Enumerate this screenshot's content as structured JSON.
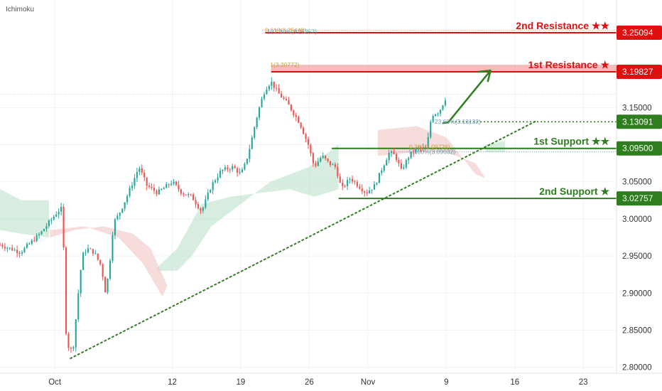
{
  "indicator_label": "Ichimoku",
  "colors": {
    "up": "#26a69a",
    "down": "#ef5350",
    "resistance": "#e01010",
    "support": "#2e7d1e",
    "cloud_bull": "#b7dfc4",
    "cloud_bear": "#f2c4c4",
    "fib_gold": "#c8a040",
    "fib_blue": "#6a9ab0",
    "axis_text": "#333333",
    "grid": "#f0f3fa"
  },
  "chart_data": {
    "type": "candlestick",
    "y_axis": {
      "min": 2.8,
      "max": 3.3,
      "ticks": [
        "3.15000",
        "3.10000",
        "3.05000",
        "3.00000",
        "2.95000",
        "2.90000",
        "2.85000",
        "2.80000"
      ],
      "tick_values": [
        3.15,
        3.1,
        3.05,
        3.0,
        2.95,
        2.9,
        2.85,
        2.8
      ],
      "position": "right"
    },
    "x_axis": {
      "ticks": [
        "Oct",
        "12",
        "19",
        "26",
        "Nov",
        "9",
        "16",
        "23"
      ],
      "tick_days": [
        0,
        12,
        19,
        26,
        32,
        40,
        47,
        54
      ],
      "unit": "calendar days from Oct 1",
      "range_days": [
        -5.6,
        57.4
      ]
    },
    "candles_per_day": 4,
    "candle_anchors": [
      [
        -5.6,
        2.965
      ],
      [
        -3.5,
        2.955
      ],
      [
        -1.5,
        2.98
      ],
      [
        0.3,
        3.01
      ],
      [
        0.8,
        3.015
      ],
      [
        0.9,
        2.96
      ],
      [
        1.0,
        2.86
      ],
      [
        1.5,
        2.82
      ],
      [
        1.9,
        2.83
      ],
      [
        2.4,
        2.9
      ],
      [
        2.8,
        2.95
      ],
      [
        3.3,
        2.96
      ],
      [
        4.0,
        2.955
      ],
      [
        4.8,
        2.935
      ],
      [
        5.1,
        2.9
      ],
      [
        5.5,
        2.925
      ],
      [
        6.0,
        2.995
      ],
      [
        6.5,
        3.005
      ],
      [
        7.2,
        3.025
      ],
      [
        8.0,
        3.05
      ],
      [
        8.6,
        3.07
      ],
      [
        9.4,
        3.045
      ],
      [
        10.5,
        3.035
      ],
      [
        12.0,
        3.05
      ],
      [
        13.0,
        3.035
      ],
      [
        14.0,
        3.03
      ],
      [
        15.0,
        3.01
      ],
      [
        16.0,
        3.045
      ],
      [
        17.0,
        3.065
      ],
      [
        18.2,
        3.07
      ],
      [
        19.0,
        3.06
      ],
      [
        19.5,
        3.075
      ],
      [
        20.0,
        3.1
      ],
      [
        20.5,
        3.13
      ],
      [
        21.0,
        3.155
      ],
      [
        21.5,
        3.175
      ],
      [
        22.1,
        3.185
      ],
      [
        22.8,
        3.17
      ],
      [
        23.8,
        3.155
      ],
      [
        25.0,
        3.13
      ],
      [
        25.9,
        3.1
      ],
      [
        26.5,
        3.07
      ],
      [
        27.3,
        3.085
      ],
      [
        28.0,
        3.075
      ],
      [
        28.7,
        3.07
      ],
      [
        29.3,
        3.04
      ],
      [
        30.2,
        3.055
      ],
      [
        31.0,
        3.045
      ],
      [
        31.8,
        3.035
      ],
      [
        32.7,
        3.045
      ],
      [
        33.5,
        3.07
      ],
      [
        34.2,
        3.09
      ],
      [
        34.8,
        3.085
      ],
      [
        35.4,
        3.065
      ],
      [
        36.2,
        3.085
      ],
      [
        37.0,
        3.095
      ],
      [
        38.0,
        3.095
      ],
      [
        38.5,
        3.14
      ],
      [
        39.3,
        3.145
      ],
      [
        40.0,
        3.165
      ]
    ],
    "levels": [
      {
        "label": "2nd Resistance ★★",
        "value": 3.25094,
        "tag": "3.25094",
        "kind": "resistance"
      },
      {
        "label": "1st Resistance ★",
        "value": 3.19827,
        "tag": "3.19827",
        "kind": "resistance",
        "zone_top": 3.20772
      },
      {
        "label": "1st Support ★★",
        "value": 3.095,
        "tag": "3.09500",
        "kind": "support"
      },
      {
        "label": "2nd Support ★",
        "value": 3.02757,
        "tag": "3.02757",
        "kind": "support"
      }
    ],
    "dotted_level": {
      "value": 3.13091,
      "tag": "3.13091",
      "from_day": 40.2
    },
    "fib_labels": [
      {
        "text": "0.618(3.25440)",
        "value": 3.2544,
        "day": 21.5,
        "color_key": "fib_gold"
      },
      {
        "text": "127.20%(3.25257)",
        "value": 3.25257,
        "day": 21.7,
        "color_key": "fib_blue"
      },
      {
        "text": "1(3.20772)",
        "value": 3.20772,
        "day": 22.0,
        "color_key": "fib_gold"
      },
      {
        "text": "23.60%(3.13132)",
        "value": 3.13132,
        "day": 38.8,
        "color_key": "fib_blue"
      },
      {
        "text": "0.382(3.09728)",
        "value": 3.09728,
        "day": 36.2,
        "color_key": "fib_gold"
      },
      {
        "text": "50.00%(3.09032)",
        "value": 3.09032,
        "day": 36.2,
        "color_key": "fib_blue"
      }
    ],
    "trendline": {
      "from": [
        1.6,
        2.812
      ],
      "to": [
        49.2,
        3.132
      ]
    },
    "arrow": {
      "from": [
        40.2,
        3.13
      ],
      "to": [
        43.8,
        3.2
      ]
    },
    "cloud_bull": [
      [
        [
          -5.6,
          2.985
        ],
        [
          -3.4,
          2.98
        ],
        [
          -0.6,
          2.975
        ],
        [
          -0.6,
          3.025
        ],
        [
          -3.4,
          3.025
        ],
        [
          -5.6,
          3.04
        ]
      ],
      [
        [
          10.5,
          2.93
        ],
        [
          12.5,
          2.93
        ],
        [
          14.0,
          2.95
        ],
        [
          16.0,
          2.99
        ],
        [
          18.0,
          3.01
        ],
        [
          20.0,
          3.03
        ],
        [
          22.0,
          3.05
        ],
        [
          24.0,
          3.06
        ],
        [
          26.0,
          3.07
        ],
        [
          28.0,
          3.09
        ],
        [
          29.0,
          3.1
        ],
        [
          29.0,
          3.04
        ],
        [
          26.5,
          3.03
        ],
        [
          24.0,
          3.04
        ],
        [
          21.0,
          3.035
        ],
        [
          18.0,
          3.03
        ],
        [
          15.0,
          3.02
        ],
        [
          12.5,
          2.96
        ],
        [
          10.5,
          2.935
        ]
      ],
      [
        [
          44.0,
          3.09
        ],
        [
          46.0,
          3.09
        ],
        [
          46.0,
          3.105
        ],
        [
          44.0,
          3.1
        ]
      ]
    ],
    "cloud_bear": [
      [
        [
          -0.5,
          2.975
        ],
        [
          2.0,
          2.985
        ],
        [
          5.0,
          2.99
        ],
        [
          8.0,
          2.98
        ],
        [
          9.8,
          2.96
        ],
        [
          11.5,
          2.91
        ],
        [
          11.0,
          2.895
        ],
        [
          9.0,
          2.94
        ],
        [
          6.5,
          2.975
        ],
        [
          3.0,
          2.99
        ],
        [
          -0.5,
          2.985
        ]
      ],
      [
        [
          33.0,
          3.12
        ],
        [
          37.0,
          3.125
        ],
        [
          40.0,
          3.11
        ],
        [
          43.0,
          3.06
        ],
        [
          44.0,
          3.055
        ],
        [
          43.0,
          3.075
        ],
        [
          40.0,
          3.09
        ],
        [
          37.0,
          3.09
        ],
        [
          33.0,
          3.085
        ]
      ]
    ]
  }
}
